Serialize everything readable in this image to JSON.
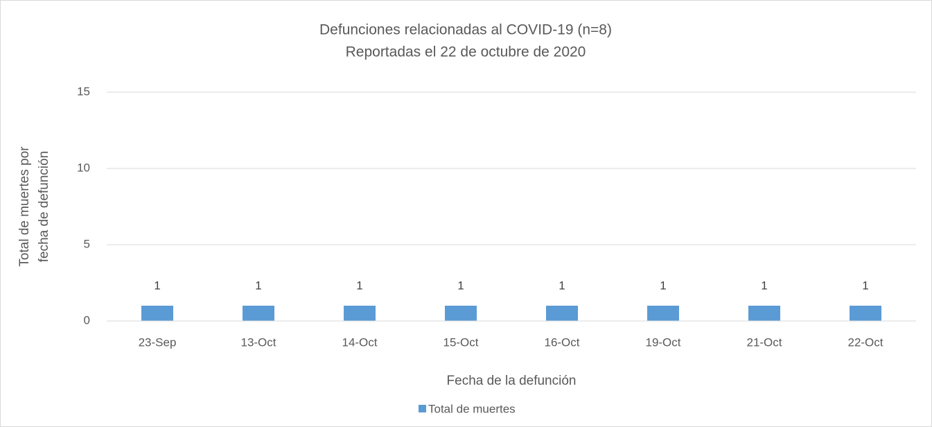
{
  "chart_data": {
    "type": "bar",
    "title": "Defunciones relacionadas al COVID-19 (n=8)",
    "subtitle": "Reportadas el 22 de octubre de 2020",
    "x_label": "Fecha de la defunción",
    "y_label": [
      "Total de muertes  por",
      "fecha de defunción"
    ],
    "categories": [
      "23-Sep",
      "13-Oct",
      "14-Oct",
      "15-Oct",
      "16-Oct",
      "19-Oct",
      "21-Oct",
      "22-Oct"
    ],
    "series": [
      {
        "name": "Total de muertes",
        "color": "#5b9bd5",
        "values": [
          1,
          1,
          1,
          1,
          1,
          1,
          1,
          1
        ]
      }
    ],
    "ylim": [
      0,
      15
    ],
    "yticks": [
      0,
      5,
      10,
      15
    ],
    "grid": true,
    "legend": "bottom",
    "data_labels": true
  }
}
